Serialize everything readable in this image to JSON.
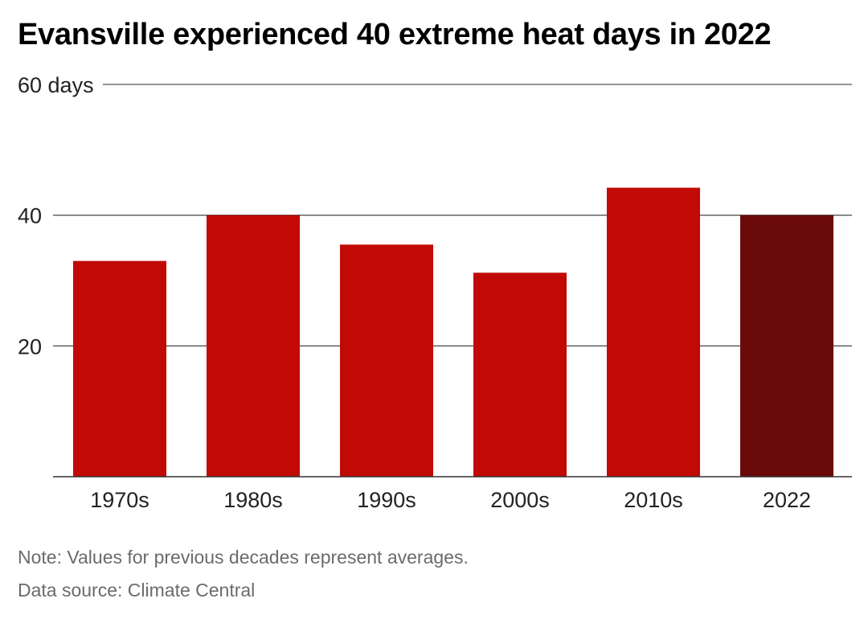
{
  "title": "Evansville experienced 40 extreme heat days in 2022",
  "note": "Note: Values for previous decades represent averages.",
  "source": "Data source: Climate Central",
  "colors": {
    "bar": "#c10a06",
    "highlight": "#6b0a0b",
    "grid": "#555555",
    "axis": "#333333"
  },
  "chart_data": {
    "type": "bar",
    "title": "Evansville experienced 40 extreme heat days in 2022",
    "categories": [
      "1970s",
      "1980s",
      "1990s",
      "2000s",
      "2010s",
      "2022"
    ],
    "values": [
      33,
      40,
      35.5,
      31.2,
      44.2,
      40
    ],
    "highlight_index": 5,
    "ylim": [
      0,
      60
    ],
    "yticks": [
      {
        "value": 20,
        "label": "20"
      },
      {
        "value": 40,
        "label": "40"
      },
      {
        "value": 60,
        "label": "60 days"
      }
    ],
    "grid": true,
    "legend": "none"
  }
}
